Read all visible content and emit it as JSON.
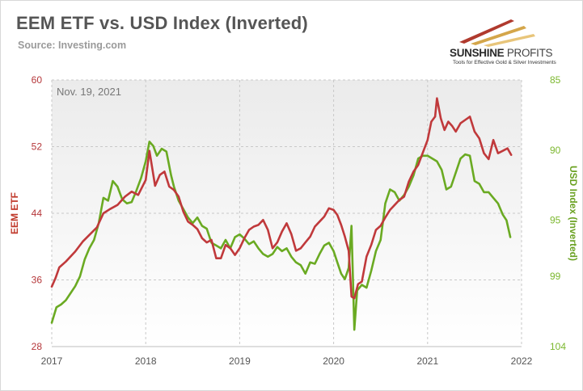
{
  "header": {
    "title": "EEM ETF vs. USD Index (Inverted)",
    "source": "Source: Investing.com"
  },
  "logo": {
    "name_bold": "SUNSHINE",
    "name_light": " PROFITS",
    "tagline": "Tools for Effective Gold & Silver Investments"
  },
  "colors": {
    "eem": "#c0393b",
    "usd": "#6aaa22",
    "grid": "#c8c8c8",
    "plot_bg_top": "#ebebeb",
    "plot_bg_bottom": "#ffffff"
  },
  "chart_data": {
    "type": "line",
    "annotation": "Nov. 19, 2021",
    "x_axis": {
      "min": 2017,
      "max": 2022,
      "ticks": [
        2017,
        2018,
        2019,
        2020,
        2021,
        2022
      ]
    },
    "left_axis": {
      "label": "EEM ETF",
      "min": 28,
      "max": 60,
      "ticks": [
        28,
        36,
        44,
        52,
        60
      ]
    },
    "right_axis": {
      "label": "USD Index (Inverted)",
      "inverted": true,
      "min": 85,
      "max": 104,
      "ticks": [
        85,
        90,
        95,
        99,
        104
      ]
    },
    "series": [
      {
        "axis": "left",
        "points": [
          [
            2017.0,
            35.2
          ],
          [
            2017.04,
            36.2
          ],
          [
            2017.08,
            37.5
          ],
          [
            2017.15,
            38.2
          ],
          [
            2017.25,
            39.4
          ],
          [
            2017.33,
            40.6
          ],
          [
            2017.4,
            41.4
          ],
          [
            2017.48,
            42.3
          ],
          [
            2017.55,
            44.0
          ],
          [
            2017.62,
            44.5
          ],
          [
            2017.7,
            45.0
          ],
          [
            2017.78,
            46.0
          ],
          [
            2017.85,
            46.6
          ],
          [
            2017.92,
            46.2
          ],
          [
            2018.0,
            48.0
          ],
          [
            2018.04,
            51.5
          ],
          [
            2018.07,
            49.4
          ],
          [
            2018.1,
            47.3
          ],
          [
            2018.15,
            48.6
          ],
          [
            2018.2,
            49.0
          ],
          [
            2018.25,
            47.2
          ],
          [
            2018.3,
            46.8
          ],
          [
            2018.35,
            46.0
          ],
          [
            2018.4,
            44.2
          ],
          [
            2018.45,
            43.0
          ],
          [
            2018.5,
            42.6
          ],
          [
            2018.55,
            42.1
          ],
          [
            2018.6,
            41.0
          ],
          [
            2018.65,
            40.5
          ],
          [
            2018.7,
            40.8
          ],
          [
            2018.75,
            38.6
          ],
          [
            2018.8,
            38.6
          ],
          [
            2018.85,
            40.2
          ],
          [
            2018.9,
            39.8
          ],
          [
            2018.95,
            39.0
          ],
          [
            2019.0,
            39.8
          ],
          [
            2019.05,
            41.0
          ],
          [
            2019.1,
            42.0
          ],
          [
            2019.15,
            42.4
          ],
          [
            2019.2,
            42.6
          ],
          [
            2019.25,
            43.2
          ],
          [
            2019.3,
            42.0
          ],
          [
            2019.35,
            39.8
          ],
          [
            2019.4,
            40.5
          ],
          [
            2019.45,
            41.8
          ],
          [
            2019.5,
            42.8
          ],
          [
            2019.55,
            41.5
          ],
          [
            2019.6,
            39.5
          ],
          [
            2019.65,
            39.8
          ],
          [
            2019.7,
            40.5
          ],
          [
            2019.75,
            41.2
          ],
          [
            2019.8,
            42.4
          ],
          [
            2019.85,
            43.0
          ],
          [
            2019.9,
            43.6
          ],
          [
            2019.95,
            44.6
          ],
          [
            2020.0,
            44.4
          ],
          [
            2020.04,
            43.8
          ],
          [
            2020.08,
            42.6
          ],
          [
            2020.12,
            41.2
          ],
          [
            2020.16,
            39.5
          ],
          [
            2020.19,
            34.0
          ],
          [
            2020.22,
            33.8
          ],
          [
            2020.26,
            35.5
          ],
          [
            2020.3,
            35.8
          ],
          [
            2020.35,
            38.8
          ],
          [
            2020.4,
            40.2
          ],
          [
            2020.45,
            42.0
          ],
          [
            2020.5,
            42.5
          ],
          [
            2020.55,
            43.5
          ],
          [
            2020.6,
            44.4
          ],
          [
            2020.65,
            45.0
          ],
          [
            2020.7,
            45.6
          ],
          [
            2020.75,
            46.0
          ],
          [
            2020.8,
            47.8
          ],
          [
            2020.85,
            49.0
          ],
          [
            2020.9,
            49.8
          ],
          [
            2020.95,
            51.3
          ],
          [
            2021.0,
            52.8
          ],
          [
            2021.04,
            55.0
          ],
          [
            2021.08,
            55.6
          ],
          [
            2021.1,
            57.8
          ],
          [
            2021.14,
            55.4
          ],
          [
            2021.18,
            54.0
          ],
          [
            2021.22,
            55.0
          ],
          [
            2021.26,
            54.5
          ],
          [
            2021.3,
            53.8
          ],
          [
            2021.35,
            54.8
          ],
          [
            2021.4,
            55.2
          ],
          [
            2021.45,
            55.6
          ],
          [
            2021.5,
            53.8
          ],
          [
            2021.55,
            53.0
          ],
          [
            2021.6,
            51.2
          ],
          [
            2021.65,
            50.5
          ],
          [
            2021.7,
            52.8
          ],
          [
            2021.75,
            51.2
          ],
          [
            2021.8,
            51.5
          ],
          [
            2021.85,
            51.8
          ],
          [
            2021.89,
            51.0
          ]
        ]
      },
      {
        "axis": "right",
        "points": [
          [
            2017.0,
            102.3
          ],
          [
            2017.05,
            101.2
          ],
          [
            2017.1,
            101.0
          ],
          [
            2017.15,
            100.7
          ],
          [
            2017.2,
            100.2
          ],
          [
            2017.25,
            99.7
          ],
          [
            2017.3,
            99.0
          ],
          [
            2017.35,
            97.8
          ],
          [
            2017.4,
            97.0
          ],
          [
            2017.45,
            96.4
          ],
          [
            2017.5,
            95.2
          ],
          [
            2017.55,
            93.4
          ],
          [
            2017.6,
            93.6
          ],
          [
            2017.65,
            92.2
          ],
          [
            2017.7,
            92.6
          ],
          [
            2017.75,
            93.5
          ],
          [
            2017.8,
            93.8
          ],
          [
            2017.85,
            93.7
          ],
          [
            2017.9,
            92.9
          ],
          [
            2017.95,
            92.0
          ],
          [
            2018.0,
            90.8
          ],
          [
            2018.04,
            89.4
          ],
          [
            2018.08,
            89.7
          ],
          [
            2018.12,
            90.4
          ],
          [
            2018.17,
            89.9
          ],
          [
            2018.22,
            90.1
          ],
          [
            2018.27,
            91.8
          ],
          [
            2018.3,
            92.6
          ],
          [
            2018.35,
            93.6
          ],
          [
            2018.4,
            94.2
          ],
          [
            2018.45,
            94.8
          ],
          [
            2018.5,
            95.2
          ],
          [
            2018.55,
            94.8
          ],
          [
            2018.6,
            95.4
          ],
          [
            2018.65,
            95.6
          ],
          [
            2018.7,
            96.6
          ],
          [
            2018.75,
            96.8
          ],
          [
            2018.8,
            97.0
          ],
          [
            2018.85,
            96.4
          ],
          [
            2018.9,
            97.0
          ],
          [
            2018.95,
            96.2
          ],
          [
            2019.0,
            96.0
          ],
          [
            2019.05,
            96.3
          ],
          [
            2019.1,
            96.7
          ],
          [
            2019.15,
            96.5
          ],
          [
            2019.2,
            97.0
          ],
          [
            2019.25,
            97.4
          ],
          [
            2019.3,
            97.6
          ],
          [
            2019.35,
            97.4
          ],
          [
            2019.4,
            96.9
          ],
          [
            2019.45,
            97.2
          ],
          [
            2019.5,
            97.0
          ],
          [
            2019.55,
            97.6
          ],
          [
            2019.6,
            98.0
          ],
          [
            2019.65,
            98.2
          ],
          [
            2019.7,
            98.8
          ],
          [
            2019.75,
            98.0
          ],
          [
            2019.8,
            98.1
          ],
          [
            2019.85,
            97.4
          ],
          [
            2019.9,
            96.8
          ],
          [
            2019.95,
            96.6
          ],
          [
            2020.0,
            97.2
          ],
          [
            2020.04,
            98.0
          ],
          [
            2020.08,
            98.8
          ],
          [
            2020.12,
            99.2
          ],
          [
            2020.16,
            98.4
          ],
          [
            2020.19,
            95.4
          ],
          [
            2020.22,
            102.8
          ],
          [
            2020.25,
            100.0
          ],
          [
            2020.3,
            99.6
          ],
          [
            2020.35,
            99.8
          ],
          [
            2020.4,
            98.6
          ],
          [
            2020.45,
            97.2
          ],
          [
            2020.5,
            96.4
          ],
          [
            2020.55,
            93.8
          ],
          [
            2020.6,
            92.8
          ],
          [
            2020.65,
            93.0
          ],
          [
            2020.7,
            93.6
          ],
          [
            2020.75,
            93.2
          ],
          [
            2020.8,
            92.6
          ],
          [
            2020.85,
            91.8
          ],
          [
            2020.9,
            90.6
          ],
          [
            2020.95,
            90.4
          ],
          [
            2021.0,
            90.4
          ],
          [
            2021.05,
            90.6
          ],
          [
            2021.1,
            90.8
          ],
          [
            2021.15,
            91.4
          ],
          [
            2021.2,
            92.8
          ],
          [
            2021.25,
            92.6
          ],
          [
            2021.3,
            91.6
          ],
          [
            2021.35,
            90.6
          ],
          [
            2021.4,
            90.3
          ],
          [
            2021.45,
            90.4
          ],
          [
            2021.5,
            92.2
          ],
          [
            2021.55,
            92.4
          ],
          [
            2021.6,
            93.0
          ],
          [
            2021.65,
            93.0
          ],
          [
            2021.7,
            93.4
          ],
          [
            2021.75,
            93.8
          ],
          [
            2021.8,
            94.6
          ],
          [
            2021.84,
            95.0
          ],
          [
            2021.88,
            96.2
          ]
        ]
      }
    ]
  }
}
